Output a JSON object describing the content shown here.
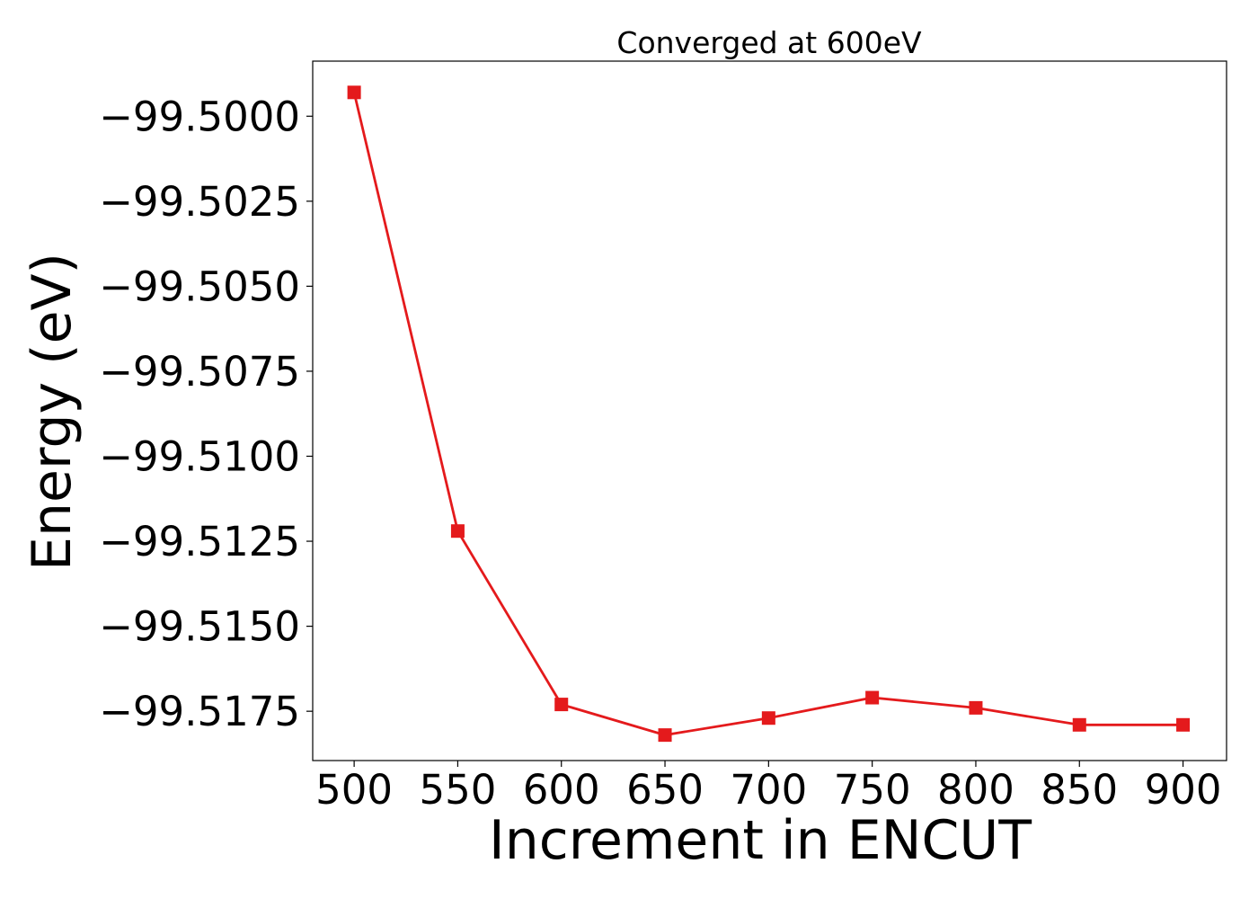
{
  "chart_data": {
    "type": "line",
    "title": "Converged at 600eV",
    "xlabel": "Increment in ENCUT",
    "ylabel": "Energy (eV)",
    "x": [
      500,
      550,
      600,
      650,
      700,
      750,
      800,
      850,
      900
    ],
    "series": [
      {
        "values": [
          -99.4993,
          -99.5122,
          -99.5173,
          -99.5182,
          -99.5177,
          -99.5171,
          -99.5174,
          -99.5179,
          -99.5179
        ],
        "color": "#e41a1c",
        "marker": "square"
      }
    ],
    "xticks": [
      500,
      550,
      600,
      650,
      700,
      750,
      800,
      850,
      900
    ],
    "xtick_labels": [
      "500",
      "550",
      "600",
      "650",
      "700",
      "750",
      "800",
      "850",
      "900"
    ],
    "yticks": [
      -99.5,
      -99.5025,
      -99.505,
      -99.5075,
      -99.51,
      -99.5125,
      -99.515,
      -99.5175
    ],
    "ytick_labels": [
      "−99.5000",
      "−99.5025",
      "−99.5050",
      "−99.5075",
      "−99.5100",
      "−99.5125",
      "−99.5150",
      "−99.5175"
    ],
    "xlim": [
      480,
      921
    ],
    "ylim": [
      -99.51895,
      -99.49838
    ],
    "grid": false,
    "legend": false
  }
}
